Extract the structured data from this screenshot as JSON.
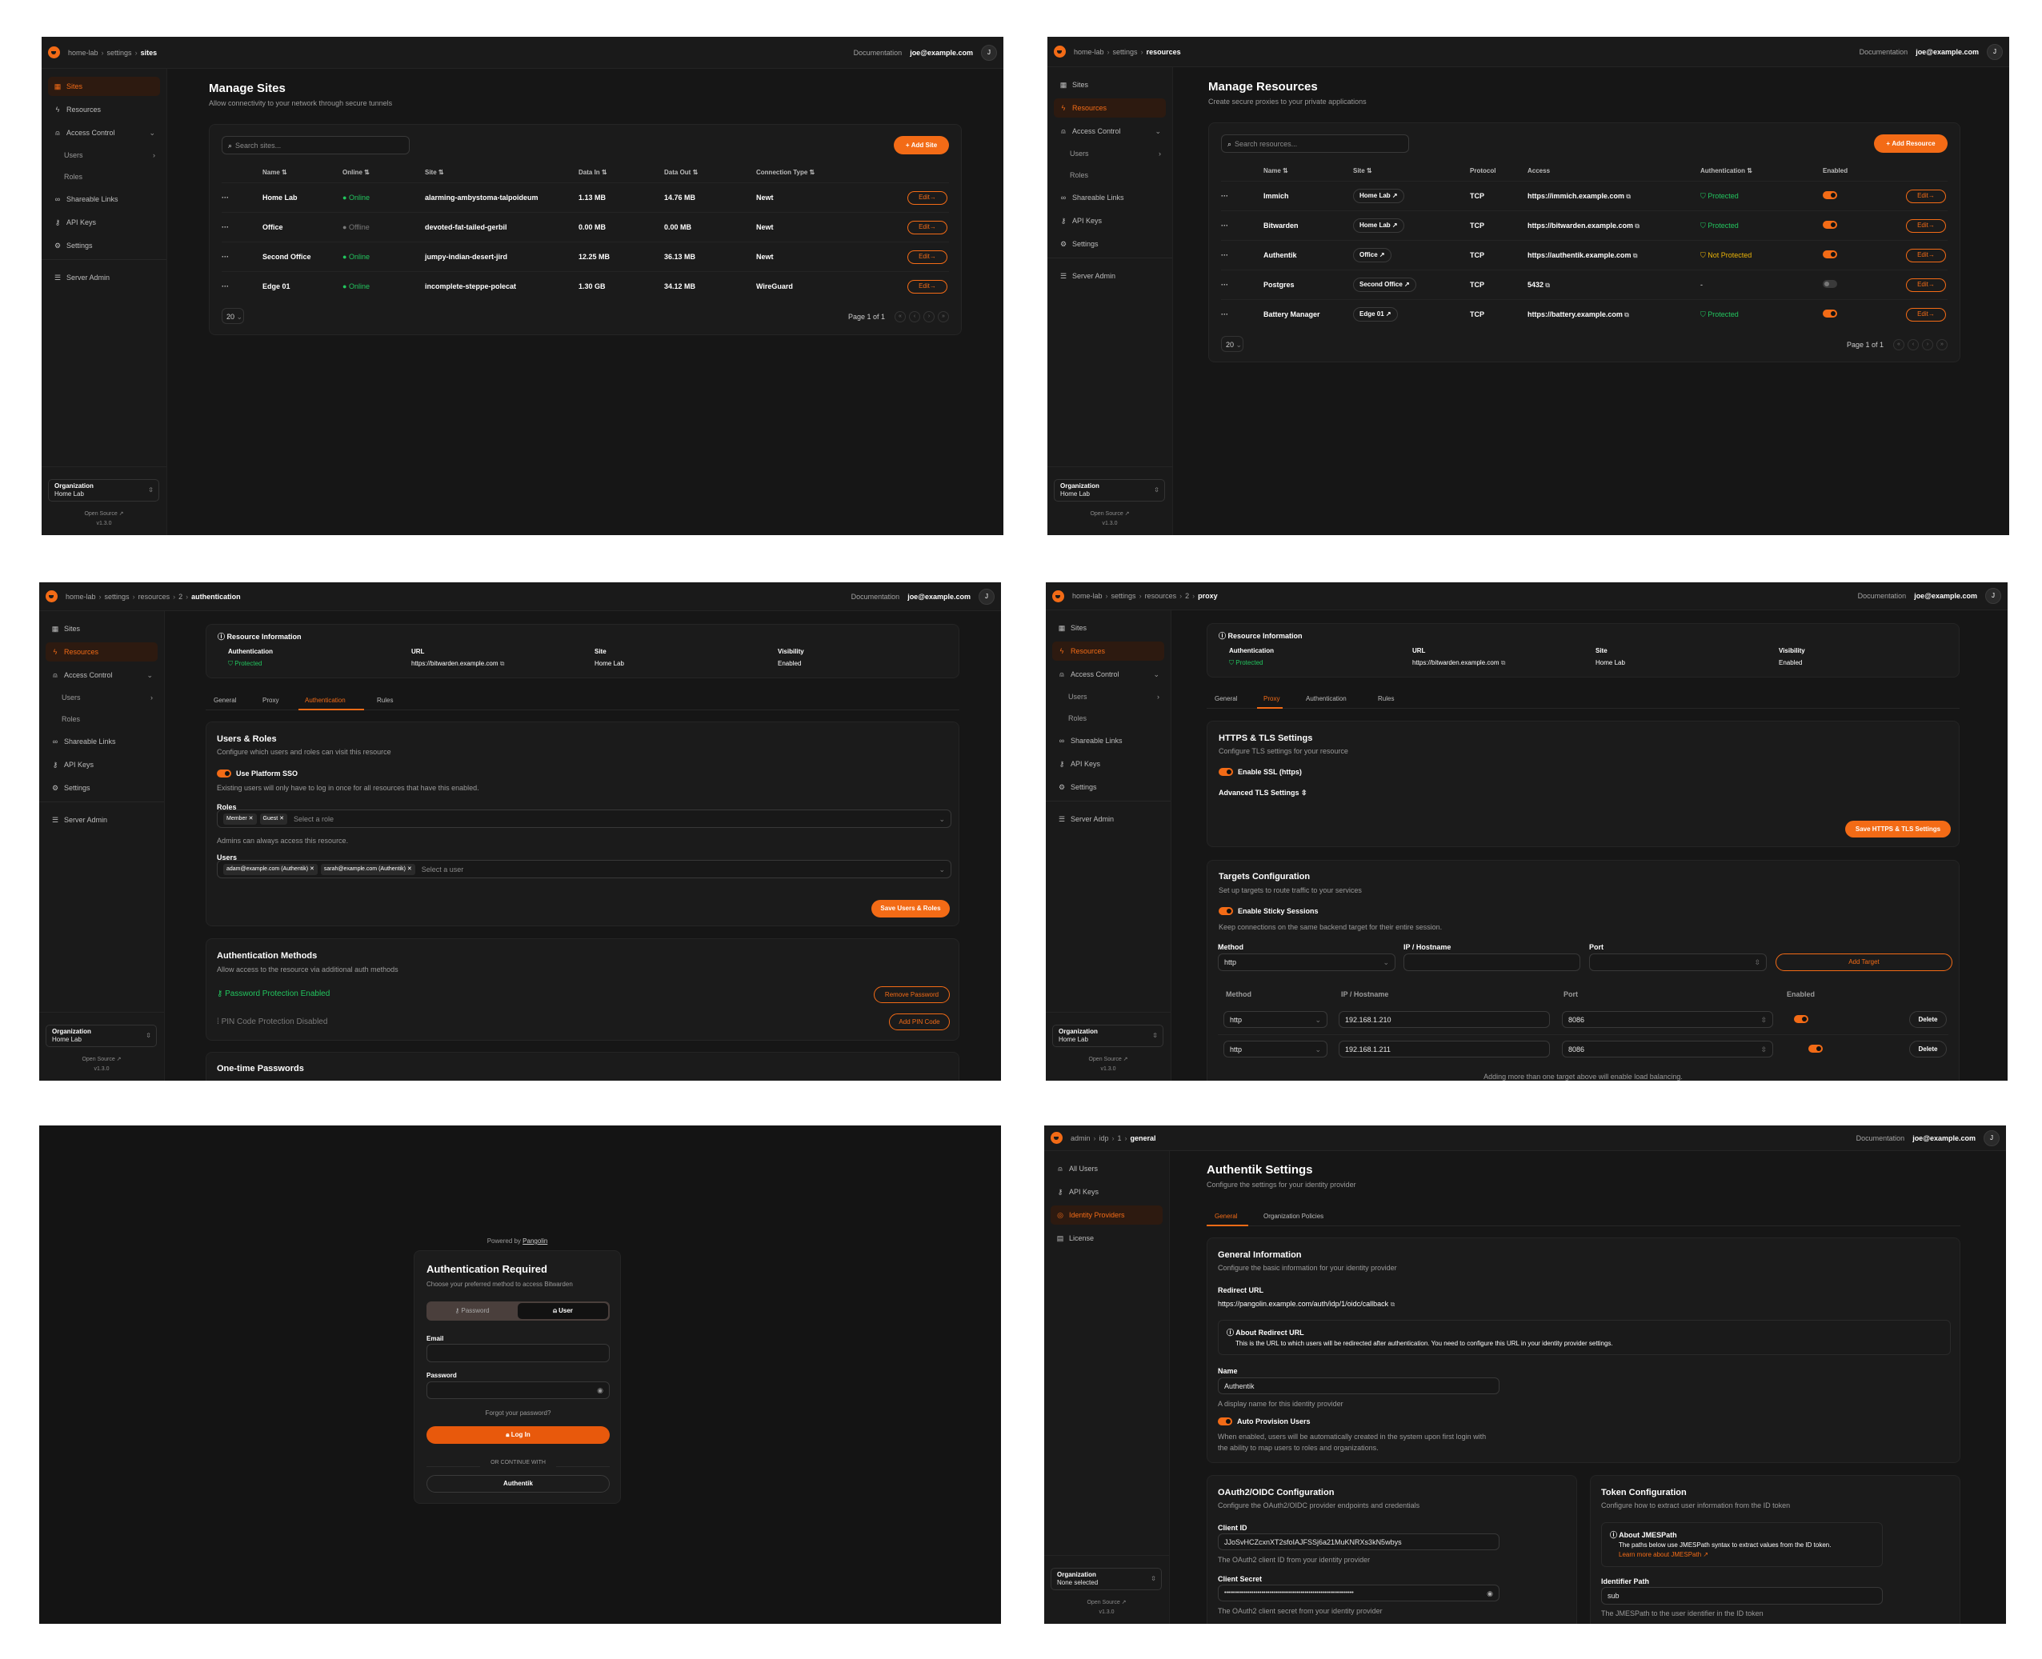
{
  "common": {
    "documentation": "Documentation",
    "user_email": "joe@example.com",
    "avatar": "J",
    "org_label": "Organization",
    "open_source": "Open Source",
    "version": "v1.3.0",
    "accent": "#f36b16",
    "edit_label": "Edit",
    "page_size": "20",
    "page_info": "Page 1 of 1"
  },
  "org_nav": [
    {
      "label": "Sites",
      "icon": "sites-icon"
    },
    {
      "label": "Resources",
      "icon": "resources-icon"
    },
    {
      "label": "Access Control",
      "icon": "access-control-icon",
      "chevron": "down"
    },
    {
      "label": "Users",
      "sub": true,
      "chevron": "right"
    },
    {
      "label": "Roles",
      "sub": true
    },
    {
      "label": "Shareable Links",
      "icon": "link-icon"
    },
    {
      "label": "API Keys",
      "icon": "key-icon"
    },
    {
      "label": "Settings",
      "icon": "gear-icon"
    },
    {
      "label": "Server Admin",
      "icon": "server-icon",
      "divider_before": true
    }
  ],
  "admin_nav": [
    {
      "label": "All Users",
      "icon": "users-icon"
    },
    {
      "label": "API Keys",
      "icon": "key-icon"
    },
    {
      "label": "Identity Providers",
      "icon": "fingerprint-icon"
    },
    {
      "label": "License",
      "icon": "license-icon"
    }
  ],
  "sites_page": {
    "breadcrumb": [
      "home-lab",
      "settings",
      "sites"
    ],
    "org_name": "Home Lab",
    "title": "Manage Sites",
    "subtitle": "Allow connectivity to your network through secure tunnels",
    "search_placeholder": "Search sites...",
    "add_button": "Add Site",
    "columns": [
      "Name",
      "Online",
      "Site",
      "Data In",
      "Data Out",
      "Connection Type"
    ],
    "rows": [
      {
        "name": "Home Lab",
        "status": "Online",
        "site": "alarming-ambystoma-talpoideum",
        "data_in": "1.13 MB",
        "data_out": "14.76 MB",
        "type": "Newt"
      },
      {
        "name": "Office",
        "status": "Offline",
        "site": "devoted-fat-tailed-gerbil",
        "data_in": "0.00 MB",
        "data_out": "0.00 MB",
        "type": "Newt"
      },
      {
        "name": "Second Office",
        "status": "Online",
        "site": "jumpy-indian-desert-jird",
        "data_in": "12.25 MB",
        "data_out": "36.13 MB",
        "type": "Newt"
      },
      {
        "name": "Edge 01",
        "status": "Online",
        "site": "incomplete-steppe-polecat",
        "data_in": "1.30 GB",
        "data_out": "34.12 MB",
        "type": "WireGuard"
      }
    ]
  },
  "resources_page": {
    "breadcrumb": [
      "home-lab",
      "settings",
      "resources"
    ],
    "org_name": "Home Lab",
    "title": "Manage Resources",
    "subtitle": "Create secure proxies to your private applications",
    "search_placeholder": "Search resources...",
    "add_button": "Add Resource",
    "columns": [
      "Name",
      "Site",
      "Protocol",
      "Access",
      "Authentication",
      "Enabled"
    ],
    "rows": [
      {
        "name": "Immich",
        "site": "Home Lab",
        "protocol": "TCP",
        "access": "https://immich.example.com",
        "auth": "Protected",
        "enabled": true
      },
      {
        "name": "Bitwarden",
        "site": "Home Lab",
        "protocol": "TCP",
        "access": "https://bitwarden.example.com",
        "auth": "Protected",
        "enabled": true
      },
      {
        "name": "Authentik",
        "site": "Office",
        "protocol": "TCP",
        "access": "https://authentik.example.com",
        "auth": "Not Protected",
        "enabled": true
      },
      {
        "name": "Postgres",
        "site": "Second Office",
        "protocol": "TCP",
        "access": "5432",
        "auth": "-",
        "enabled": false
      },
      {
        "name": "Battery Manager",
        "site": "Edge 01",
        "protocol": "TCP",
        "access": "https://battery.example.com",
        "auth": "Protected",
        "enabled": true
      }
    ]
  },
  "resource_info": {
    "title": "Resource Information",
    "fields": [
      {
        "label": "Authentication",
        "value": "Protected"
      },
      {
        "label": "URL",
        "value": "https://bitwarden.example.com"
      },
      {
        "label": "Site",
        "value": "Home Lab"
      },
      {
        "label": "Visibility",
        "value": "Enabled"
      }
    ]
  },
  "resource_tabs": [
    "General",
    "Proxy",
    "Authentication",
    "Rules"
  ],
  "auth_page": {
    "breadcrumb": [
      "home-lab",
      "settings",
      "resources",
      "2",
      "authentication"
    ],
    "org_name": "Home Lab",
    "users_roles": {
      "title": "Users & Roles",
      "subtitle": "Configure which users and roles can visit this resource",
      "sso_label": "Use Platform SSO",
      "sso_enabled": true,
      "sso_help": "Existing users will only have to log in once for all resources that have this enabled.",
      "roles_label": "Roles",
      "roles": [
        "Member",
        "Guest"
      ],
      "roles_placeholder": "Select a role",
      "roles_help": "Admins can always access this resource.",
      "users_label": "Users",
      "users": [
        "adam@example.com (Authentik)",
        "sarah@example.com (Authentik)"
      ],
      "users_placeholder": "Select a user",
      "save_button": "Save Users & Roles"
    },
    "auth_methods": {
      "title": "Authentication Methods",
      "subtitle": "Allow access to the resource via additional auth methods",
      "password_status": "Password Protection Enabled",
      "remove_password": "Remove Password",
      "pin_status": "PIN Code Protection Disabled",
      "add_pin": "Add PIN Code"
    },
    "otp_title": "One-time Passwords"
  },
  "proxy_page": {
    "breadcrumb": [
      "home-lab",
      "settings",
      "resources",
      "2",
      "proxy"
    ],
    "org_name": "Home Lab",
    "tls": {
      "title": "HTTPS & TLS Settings",
      "subtitle": "Configure TLS settings for your resource",
      "ssl_label": "Enable SSL (https)",
      "ssl_enabled": true,
      "advanced": "Advanced TLS Settings",
      "save_button": "Save HTTPS & TLS Settings"
    },
    "targets": {
      "title": "Targets Configuration",
      "subtitle": "Set up targets to route traffic to your services",
      "sticky_label": "Enable Sticky Sessions",
      "sticky_enabled": true,
      "sticky_help": "Keep connections on the same backend target for their entire session.",
      "form_labels": [
        "Method",
        "IP / Hostname",
        "Port"
      ],
      "form_method": "http",
      "add_button": "Add Target",
      "columns": [
        "Method",
        "IP / Hostname",
        "Port",
        "Enabled"
      ],
      "rows": [
        {
          "method": "http",
          "ip": "192.168.1.210",
          "port": "8086",
          "enabled": true
        },
        {
          "method": "http",
          "ip": "192.168.1.211",
          "port": "8086",
          "enabled": true
        }
      ],
      "delete_label": "Delete",
      "note": "Adding more than one target above will enable load balancing."
    }
  },
  "login_page": {
    "powered_by": "Powered by",
    "brand": "Pangolin",
    "title": "Authentication Required",
    "subtitle": "Choose your preferred method to access Bitwarden",
    "tabs": [
      "Password",
      "User"
    ],
    "active_tab": "User",
    "email_label": "Email",
    "password_label": "Password",
    "forgot": "Forgot your password?",
    "login_button": "Log In",
    "divider": "OR CONTINUE WITH",
    "sso_button": "Authentik"
  },
  "idp_page": {
    "breadcrumb": [
      "admin",
      "idp",
      "1",
      "general"
    ],
    "org_name": "None selected",
    "title": "Authentik Settings",
    "subtitle": "Configure the settings for your identity provider",
    "tabs": [
      "General",
      "Organization Policies"
    ],
    "general": {
      "title": "General Information",
      "subtitle": "Configure the basic information for your identity provider",
      "redirect_label": "Redirect URL",
      "redirect_url": "https://pangolin.example.com/auth/idp/1/oidc/callback",
      "about_title": "About Redirect URL",
      "about_text": "This is the URL to which users will be redirected after authentication. You need to configure this URL in your identity provider settings.",
      "name_label": "Name",
      "name_value": "Authentik",
      "name_help": "A display name for this identity provider",
      "auto_label": "Auto Provision Users",
      "auto_enabled": true,
      "auto_help_1": "When enabled, users will be automatically created in the system upon first login with",
      "auto_help_2": "the ability to map users to roles and organizations."
    },
    "oauth": {
      "title": "OAuth2/OIDC Configuration",
      "subtitle": "Configure the OAuth2/OIDC provider endpoints and credentials",
      "client_id_label": "Client ID",
      "client_id": "JJoSvHCZcxnXT2sfoIAJFSSj6a21MuKNRXs3kN5wbys",
      "client_id_help": "The OAuth2 client ID from your identity provider",
      "secret_label": "Client Secret",
      "secret_value": "••••••••••••••••••••••••••••••••••••••••••••••••••••••••••••••••••",
      "secret_help": "The OAuth2 client secret from your identity provider"
    },
    "token": {
      "title": "Token Configuration",
      "subtitle": "Configure how to extract user information from the ID token",
      "about_title": "About JMESPath",
      "about_text": "The paths below use JMESPath syntax to extract values from the ID token.",
      "about_link": "Learn more about JMESPath",
      "identifier_label": "Identifier Path",
      "identifier_value": "sub",
      "identifier_help": "The JMESPath to the user identifier in the ID token"
    }
  }
}
